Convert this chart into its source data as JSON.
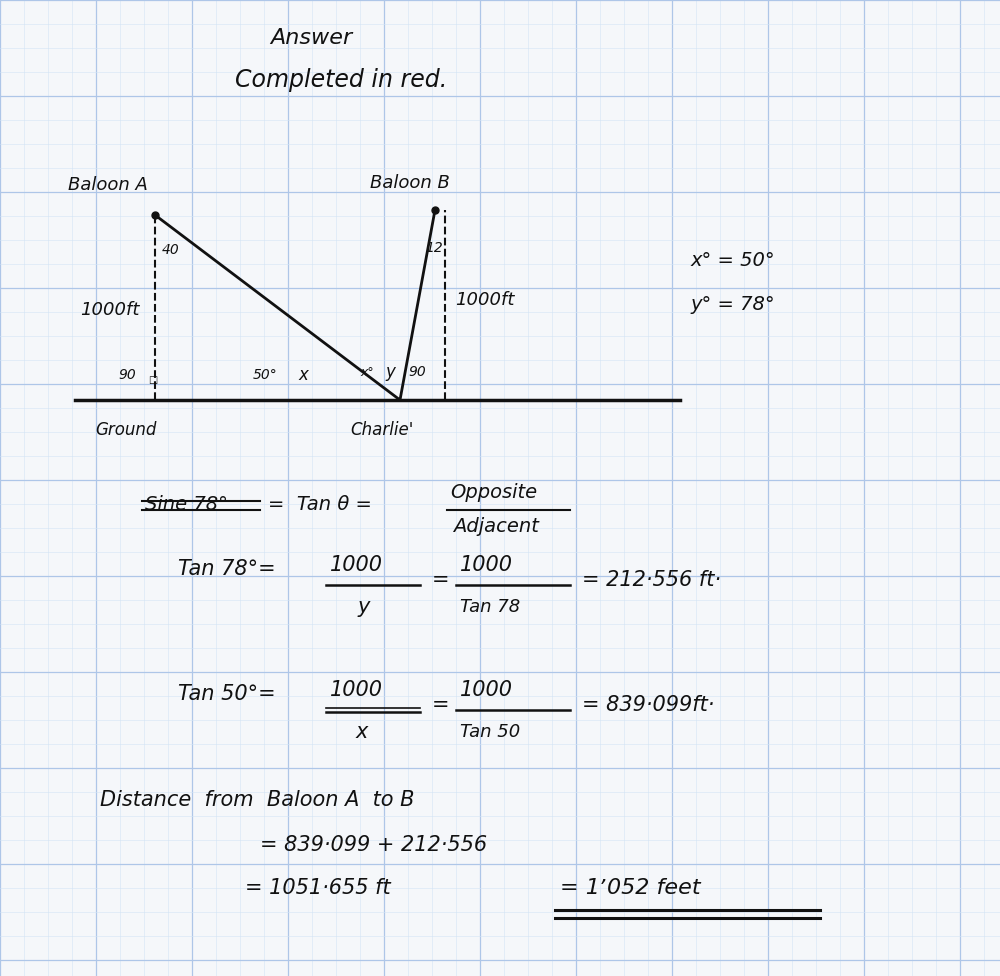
{
  "bg_color": "#f5f7fa",
  "grid_major_color": "#aec6e8",
  "grid_minor_color": "#d3e4f5",
  "line_color": "#111111",
  "title1": "Answer",
  "title2": "Completed in red.",
  "balloon_a_label": "Baloon A",
  "balloon_b_label": "Baloon B",
  "height_label": "1000ft",
  "ground_label": "Ground",
  "charlie_label": "Charlie'",
  "x_eq": "x° = 50°",
  "y_eq": "y° = 78°",
  "font": "DejaVu Sans"
}
